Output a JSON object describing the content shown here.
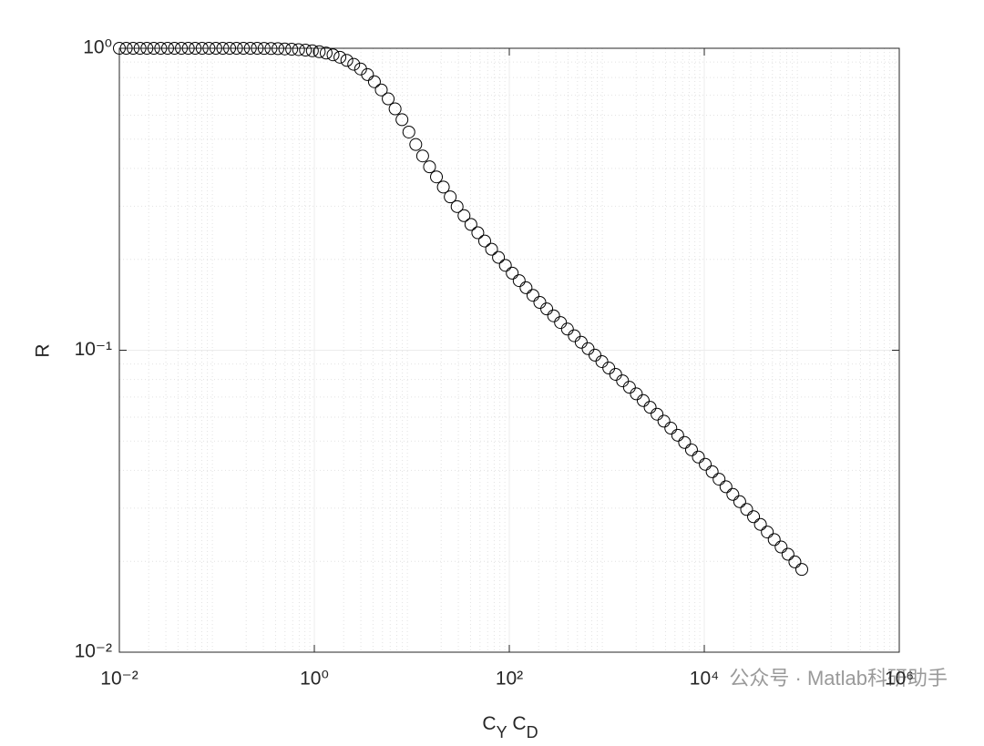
{
  "chart_data": {
    "type": "scatter",
    "xlabel": "C_Y C_D",
    "ylabel": "R",
    "watermark": "公众号 · Matlab科研助手",
    "xscale": "log",
    "yscale": "log",
    "grid": true,
    "minor_grid": true,
    "marker": "o",
    "color": "#000000",
    "xlim": [
      0.01,
      1000000
    ],
    "xticks": [
      {
        "value": 0.01,
        "label": "10⁻²"
      },
      {
        "value": 1,
        "label": "10⁰"
      },
      {
        "value": 100,
        "label": "10²"
      },
      {
        "value": 10000,
        "label": "10⁴"
      },
      {
        "value": 1000000,
        "label": "10⁶"
      }
    ],
    "ylim": [
      0.01,
      1
    ],
    "yticks": [
      {
        "value": 0.01,
        "label": "10⁻²"
      },
      {
        "value": 0.1,
        "label": "10⁻¹"
      },
      {
        "value": 1,
        "label": "10⁰"
      }
    ],
    "x": [
      0.01,
      0.01177,
      0.01385,
      0.0163,
      0.01918,
      0.02257,
      0.02656,
      0.03126,
      0.03678,
      0.04329,
      0.05094,
      0.05995,
      0.07055,
      0.08302,
      0.0977,
      0.115,
      0.1353,
      0.1592,
      0.1874,
      0.2205,
      0.2595,
      0.3054,
      0.3594,
      0.4229,
      0.4977,
      0.5857,
      0.6893,
      0.8111,
      0.9545,
      1.1233,
      1.3219,
      1.5557,
      1.8307,
      2.1544,
      2.5354,
      2.9836,
      3.5112,
      4.132,
      4.8626,
      5.7224,
      6.7342,
      7.9248,
      9.326,
      10.975,
      12.915,
      15.199,
      17.886,
      21.049,
      24.771,
      29.151,
      34.305,
      40.37,
      47.51,
      55.91,
      65.79,
      77.43,
      91.12,
      107.2,
      126.2,
      148.5,
      174.8,
      205.6,
      242,
      284.8,
      335.2,
      394.5,
      464.2,
      546.3,
      642.9,
      756.6,
      890.4,
      1048,
      1233,
      1451,
      1707,
      2009,
      2364,
      2783,
      3275,
      3854,
      4535,
      5337,
      6281,
      7391,
      8697,
      10235,
      12045,
      14175,
      16681,
      19630,
      23101,
      27186,
      31993,
      37649,
      44306,
      52140,
      61359,
      72208,
      84975,
      100000
    ],
    "values": [
      1,
      1,
      1,
      1,
      1,
      1,
      1,
      1,
      1,
      1,
      1,
      1,
      1,
      1,
      1,
      1,
      1,
      1,
      1,
      1,
      1,
      0.999,
      0.998,
      0.997,
      0.995,
      0.993,
      0.99,
      0.986,
      0.981,
      0.974,
      0.964,
      0.951,
      0.934,
      0.912,
      0.885,
      0.854,
      0.818,
      0.775,
      0.728,
      0.68,
      0.63,
      0.58,
      0.528,
      0.48,
      0.44,
      0.405,
      0.375,
      0.347,
      0.322,
      0.299,
      0.279,
      0.261,
      0.245,
      0.23,
      0.216,
      0.203,
      0.191,
      0.18,
      0.17,
      0.161,
      0.152,
      0.144,
      0.137,
      0.13,
      0.1235,
      0.1175,
      0.1117,
      0.1063,
      0.1012,
      0.0963,
      0.0917,
      0.0873,
      0.0832,
      0.0792,
      0.0754,
      0.0717,
      0.0681,
      0.0647,
      0.0614,
      0.0582,
      0.0552,
      0.0523,
      0.0495,
      0.0468,
      0.0443,
      0.0419,
      0.0396,
      0.0374,
      0.0353,
      0.0333,
      0.0315,
      0.0297,
      0.0281,
      0.0265,
      0.025,
      0.0236,
      0.0223,
      0.0211,
      0.0199,
      0.0188
    ]
  }
}
